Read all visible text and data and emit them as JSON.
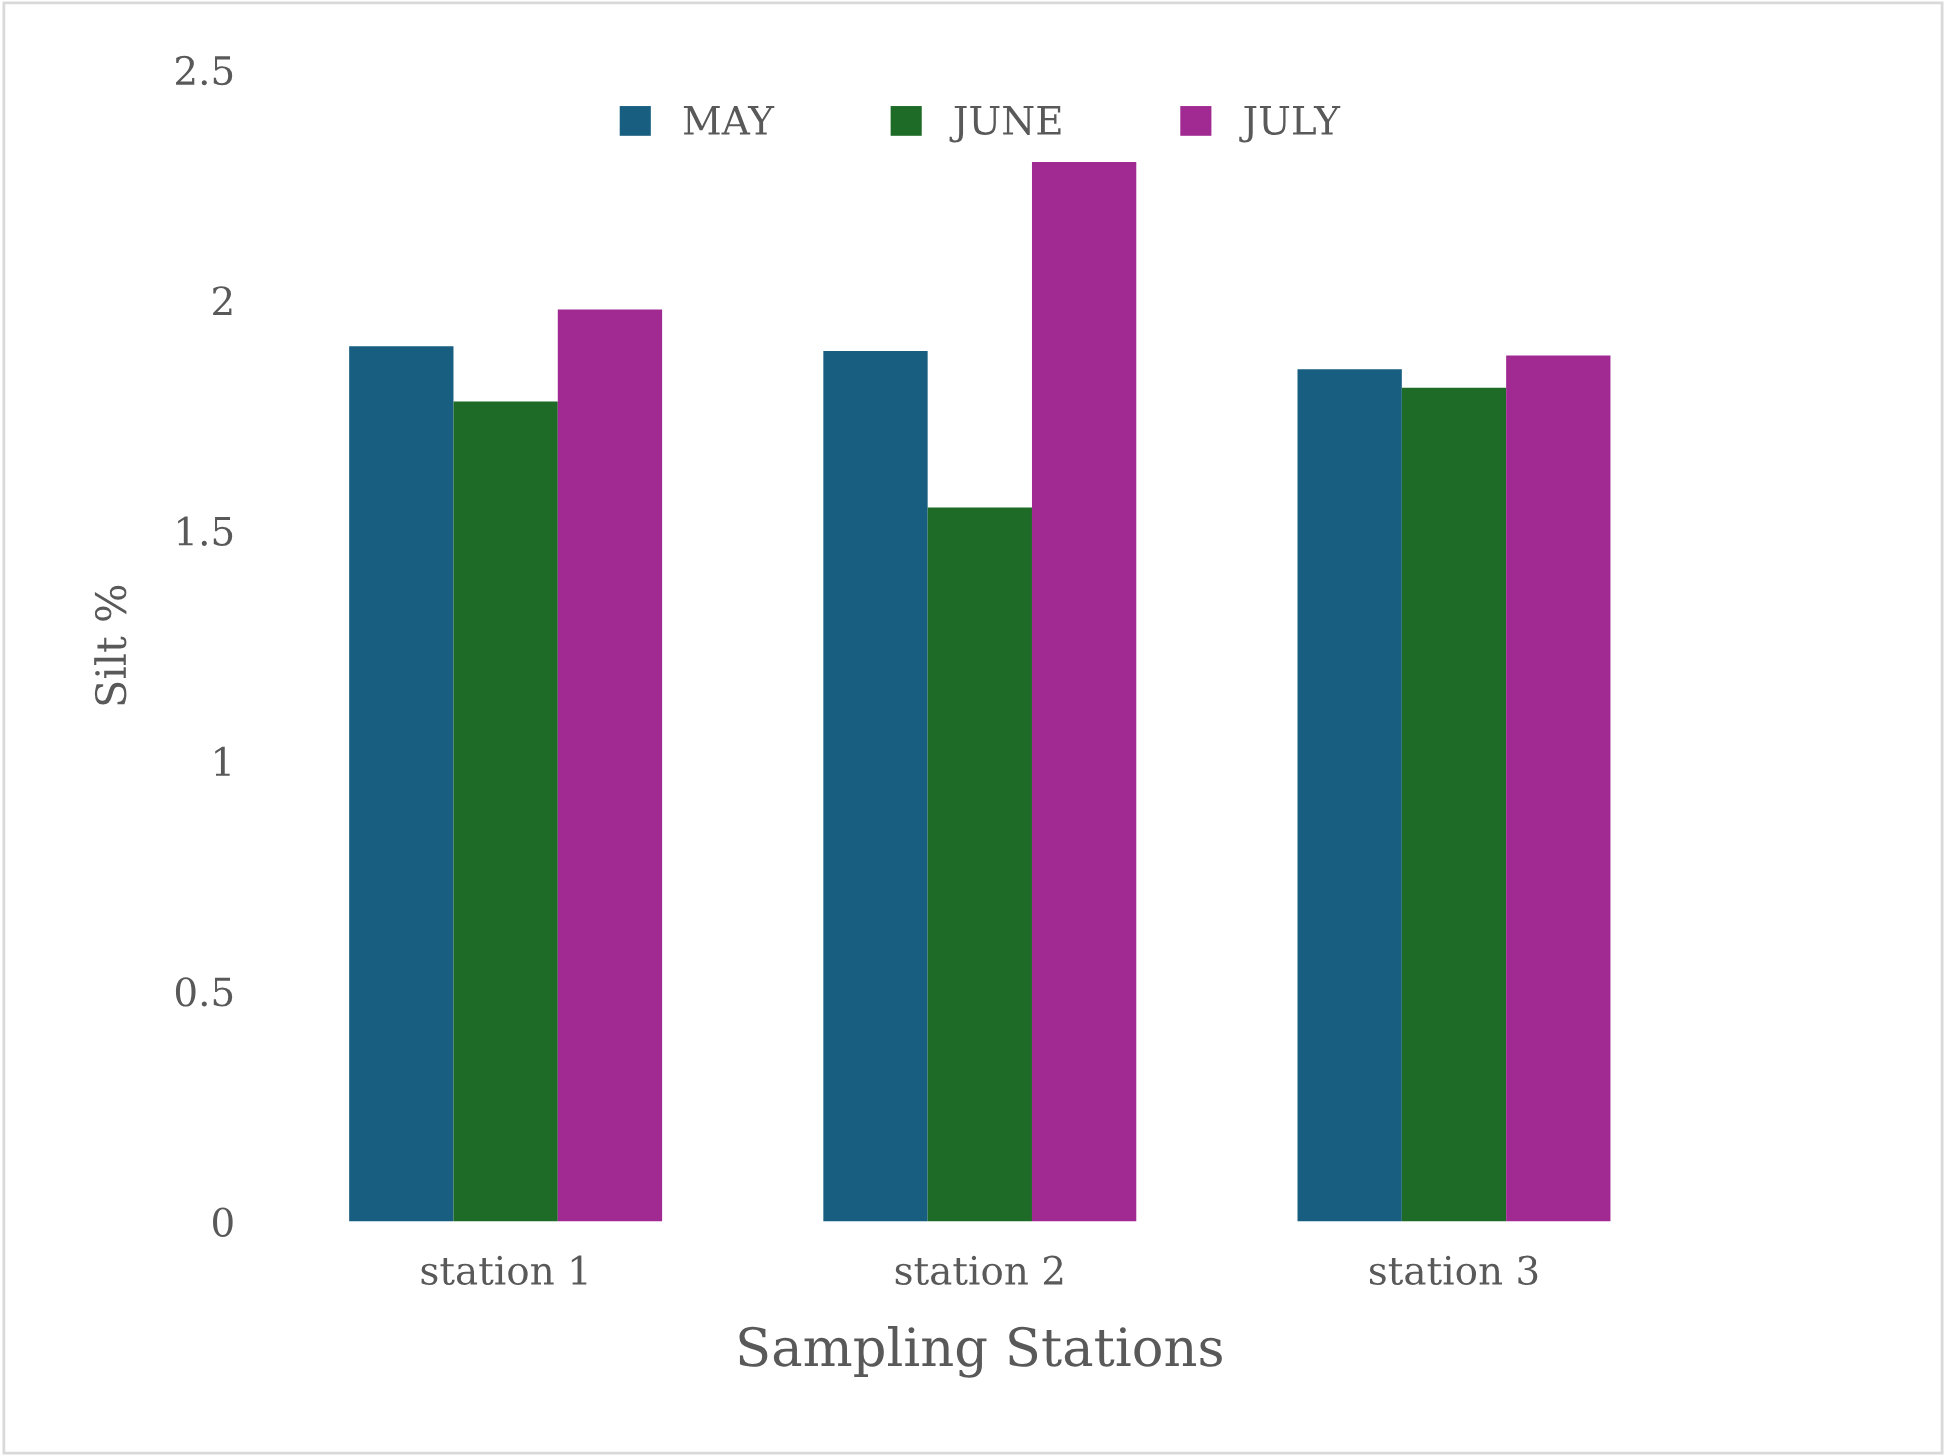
{
  "chart_data": {
    "type": "bar",
    "xlabel": "Sampling Stations",
    "ylabel": "Silt %",
    "categories": [
      "station 1",
      "station 2",
      "station 3"
    ],
    "series": [
      {
        "name": "MAY",
        "color": "#175e80",
        "values": [
          1.9,
          1.89,
          1.85
        ]
      },
      {
        "name": "JUNE",
        "color": "#1d6b26",
        "values": [
          1.78,
          1.55,
          1.81
        ]
      },
      {
        "name": "JULY",
        "color": "#a02a92",
        "values": [
          1.98,
          2.3,
          1.88
        ]
      }
    ],
    "ylim": [
      0,
      2.5
    ],
    "yticks": [
      0,
      {
        "value": 0.5,
        "label": "0.5"
      },
      1,
      {
        "value": 1.5,
        "label": "1.5"
      },
      2,
      {
        "value": 2.5,
        "label": "2.5"
      }
    ],
    "grid": false,
    "legend": "top"
  }
}
